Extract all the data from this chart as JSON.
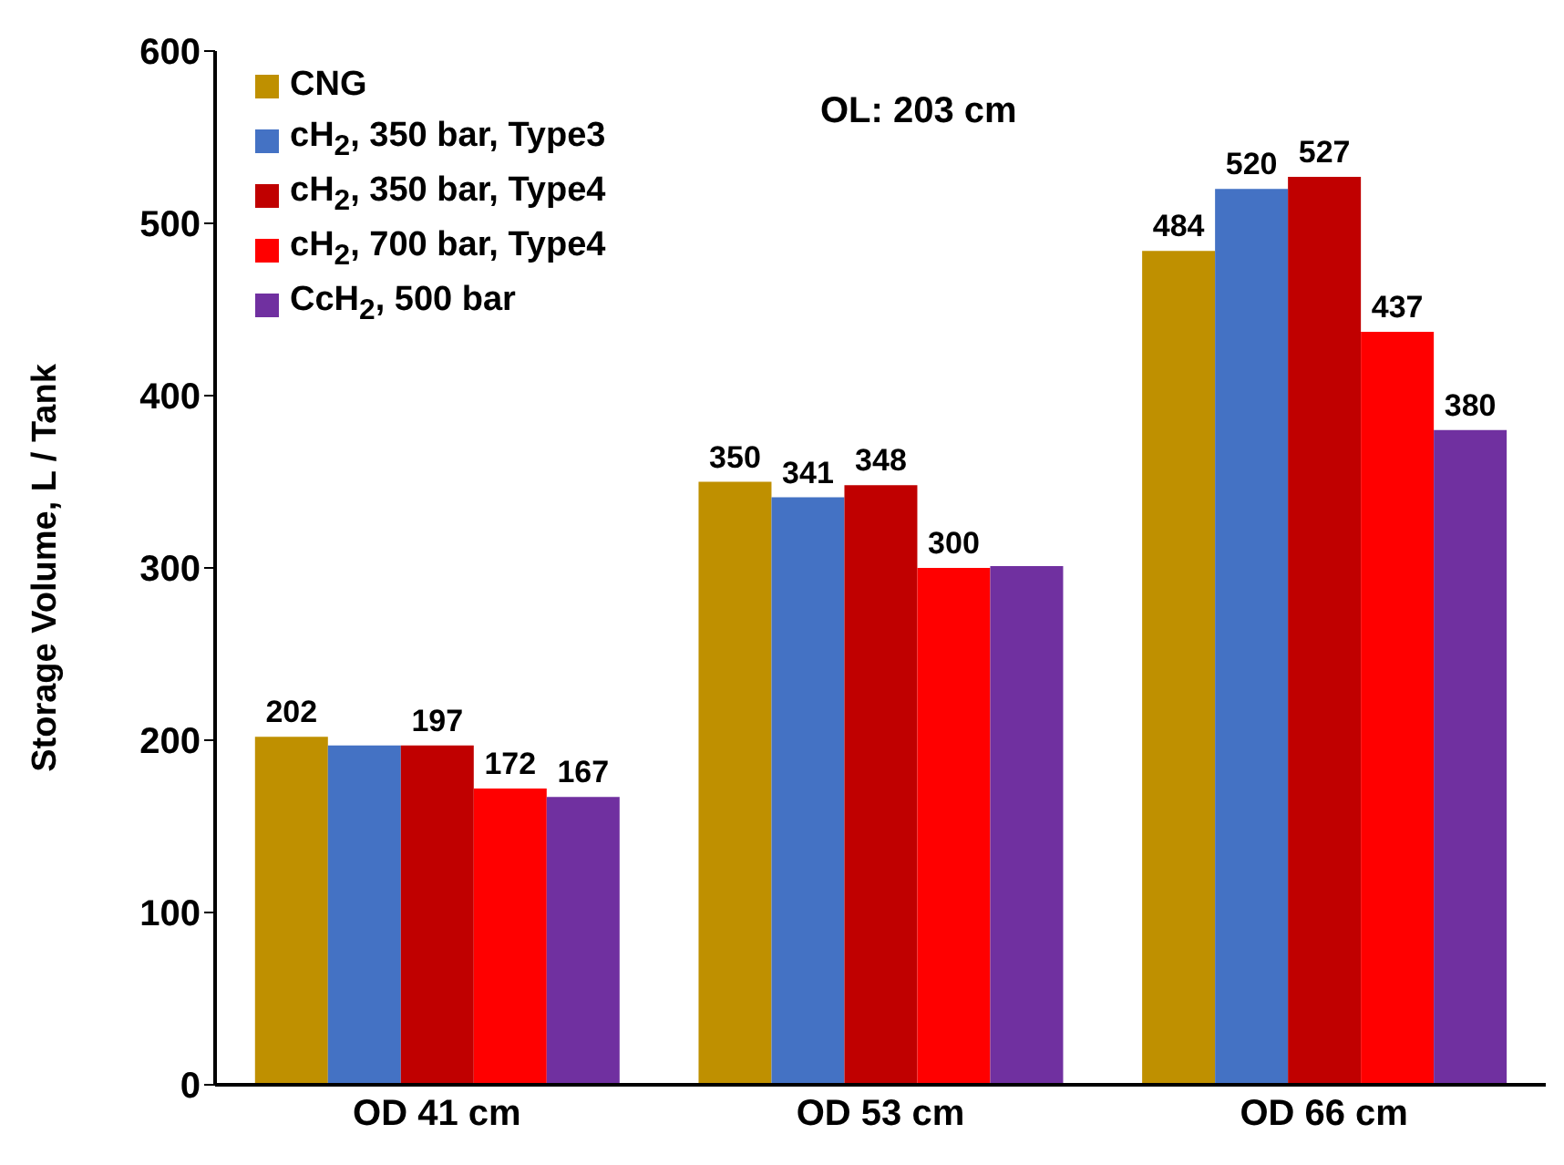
{
  "chart_data": {
    "type": "bar",
    "ylabel": "Storage Volume, L / Tank",
    "categories": [
      "OD 41 cm",
      "OD 53 cm",
      "OD 66 cm"
    ],
    "series": [
      {
        "name": "CNG",
        "color": "#bf9000",
        "values": [
          202,
          350,
          484
        ],
        "value_labels": [
          "202",
          "350",
          "484"
        ]
      },
      {
        "name": "cH$_{2}$, 350 bar, Type3",
        "color": "#4472c4",
        "values": [
          197,
          341,
          520
        ],
        "value_labels": [
          null,
          "341",
          "520"
        ]
      },
      {
        "name": "cH$_{2}$, 350 bar, Type4",
        "color": "#c00000",
        "values": [
          197,
          348,
          527
        ],
        "value_labels": [
          "197",
          "348",
          "527"
        ]
      },
      {
        "name": "cH$_{2}$, 700 bar, Type4",
        "color": "#ff0000",
        "values": [
          172,
          300,
          437
        ],
        "value_labels": [
          "172",
          "300",
          "437"
        ]
      },
      {
        "name": "CcH$_{2}$, 500 bar",
        "color": "#7030a0",
        "values": [
          167,
          301,
          380
        ],
        "value_labels": [
          "167",
          null,
          "380"
        ]
      }
    ],
    "ylim": [
      0,
      600
    ],
    "yticks": [
      0,
      100,
      200,
      300,
      400,
      500,
      600
    ],
    "grid": false,
    "legend": "top left",
    "annotations": [
      "OL: 203 cm"
    ]
  }
}
